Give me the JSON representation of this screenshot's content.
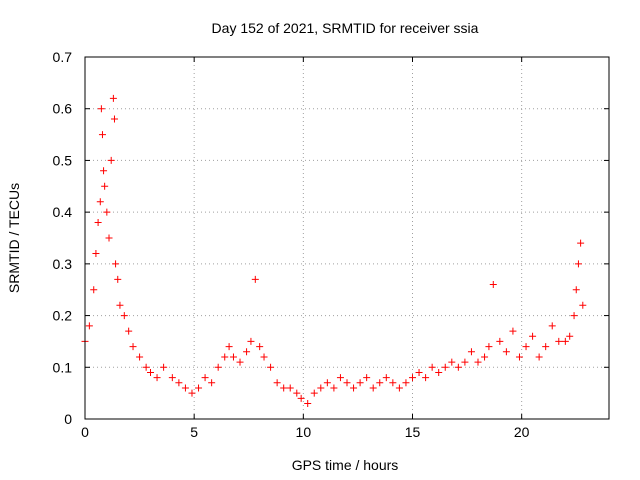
{
  "chart_data": {
    "type": "scatter",
    "title": "Day 152 of 2021, SRMTID for receiver ssia",
    "xlabel": "GPS time / hours",
    "ylabel": "SRMTID / TECUs",
    "xlim": [
      0,
      24
    ],
    "ylim": [
      0,
      0.7
    ],
    "xticks": [
      "0",
      "5",
      "10",
      "15",
      "20"
    ],
    "yticks": [
      "0",
      "0.1",
      "0.2",
      "0.3",
      "0.4",
      "0.5",
      "0.6",
      "0.7"
    ],
    "grid": true,
    "marker": "plus",
    "series": [
      {
        "name": "SRMTID",
        "color": "#ff0000",
        "x": [
          0.0,
          0.2,
          0.4,
          0.5,
          0.6,
          0.7,
          0.75,
          0.8,
          0.85,
          0.9,
          1.0,
          1.1,
          1.2,
          1.3,
          1.35,
          1.4,
          1.5,
          1.6,
          1.8,
          2.0,
          2.2,
          2.5,
          2.8,
          3.0,
          3.3,
          3.6,
          4.0,
          4.3,
          4.6,
          4.9,
          5.2,
          5.5,
          5.8,
          6.1,
          6.4,
          6.6,
          6.8,
          7.1,
          7.4,
          7.6,
          7.8,
          8.0,
          8.2,
          8.5,
          8.8,
          9.1,
          9.4,
          9.7,
          9.9,
          10.2,
          10.5,
          10.8,
          11.1,
          11.4,
          11.7,
          12.0,
          12.3,
          12.6,
          12.9,
          13.2,
          13.5,
          13.8,
          14.1,
          14.4,
          14.7,
          15.0,
          15.3,
          15.6,
          15.9,
          16.2,
          16.5,
          16.8,
          17.1,
          17.4,
          17.7,
          18.0,
          18.3,
          18.5,
          18.7,
          19.0,
          19.3,
          19.6,
          19.9,
          20.2,
          20.5,
          20.8,
          21.1,
          21.4,
          21.7,
          22.0,
          22.2,
          22.4,
          22.5,
          22.6,
          22.7,
          22.8
        ],
        "y": [
          0.15,
          0.18,
          0.25,
          0.32,
          0.38,
          0.42,
          0.6,
          0.55,
          0.48,
          0.45,
          0.4,
          0.35,
          0.5,
          0.62,
          0.58,
          0.3,
          0.27,
          0.22,
          0.2,
          0.17,
          0.14,
          0.12,
          0.1,
          0.09,
          0.08,
          0.1,
          0.08,
          0.07,
          0.06,
          0.05,
          0.06,
          0.08,
          0.07,
          0.1,
          0.12,
          0.14,
          0.12,
          0.11,
          0.13,
          0.15,
          0.27,
          0.14,
          0.12,
          0.1,
          0.07,
          0.06,
          0.06,
          0.05,
          0.04,
          0.03,
          0.05,
          0.06,
          0.07,
          0.06,
          0.08,
          0.07,
          0.06,
          0.07,
          0.08,
          0.06,
          0.07,
          0.08,
          0.07,
          0.06,
          0.07,
          0.08,
          0.09,
          0.08,
          0.1,
          0.09,
          0.1,
          0.11,
          0.1,
          0.11,
          0.13,
          0.11,
          0.12,
          0.14,
          0.26,
          0.15,
          0.13,
          0.17,
          0.12,
          0.14,
          0.16,
          0.12,
          0.14,
          0.18,
          0.15,
          0.15,
          0.16,
          0.2,
          0.25,
          0.3,
          0.34,
          0.22
        ]
      }
    ]
  }
}
